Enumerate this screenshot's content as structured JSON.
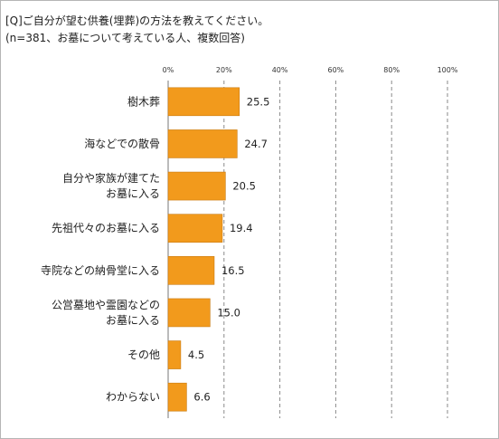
{
  "title": {
    "line1": "[Q]ご自分が望む供養(埋葬)の方法を教えてください。",
    "line2": "(n=381、お墓について考えている人、複数回答)"
  },
  "chart_data": {
    "type": "bar",
    "orientation": "horizontal",
    "title": "[Q]ご自分が望む供養(埋葬)の方法を教えてください。",
    "subtitle": "(n=381、お墓について考えている人、複数回答)",
    "categories": [
      [
        "樹木葬"
      ],
      [
        "海などでの散骨"
      ],
      [
        "自分や家族が建てた",
        "お墓に入る"
      ],
      [
        "先祖代々のお墓に入る"
      ],
      [
        "寺院などの納骨堂に入る"
      ],
      [
        "公営墓地や霊園などの",
        "お墓に入る"
      ],
      [
        "その他"
      ],
      [
        "わからない"
      ]
    ],
    "values": [
      25.5,
      24.7,
      20.5,
      19.4,
      16.5,
      15.0,
      4.5,
      6.6
    ],
    "value_labels": [
      "25.5",
      "24.7",
      "20.5",
      "19.4",
      "16.5",
      "15.0",
      "4.5",
      "6.6"
    ],
    "xlim": [
      0,
      100
    ],
    "xticks": [
      "0%",
      "20%",
      "40%",
      "60%",
      "80%",
      "100%"
    ],
    "x_tick_values": [
      0,
      20,
      40,
      60,
      80,
      100
    ],
    "grid": "vertical dashed",
    "bar_color": "#f29a1c",
    "bar_edge_color": "#c97a10"
  }
}
